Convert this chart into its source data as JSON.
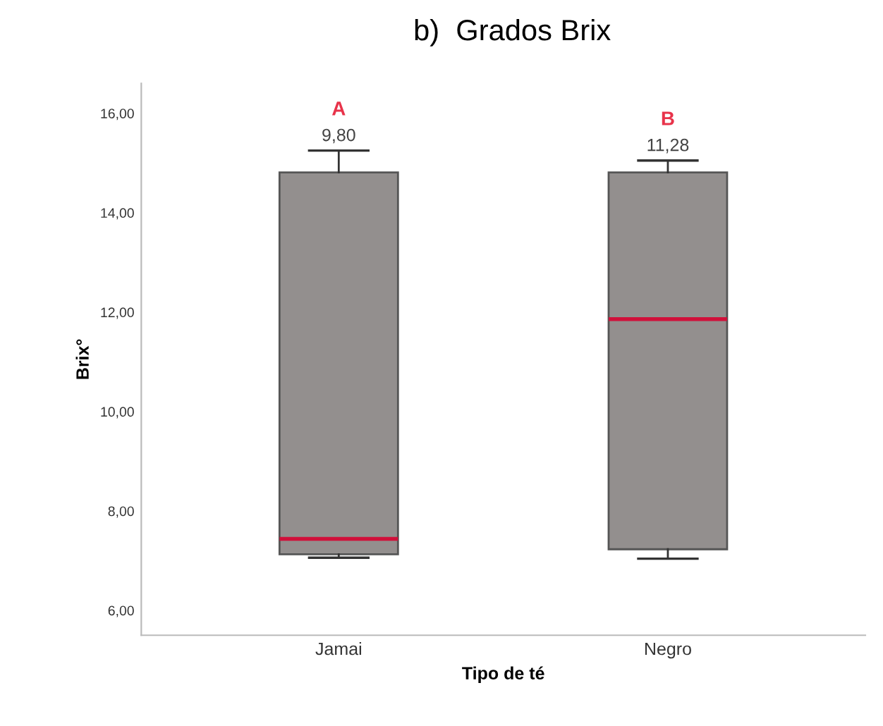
{
  "chart_data": {
    "type": "box",
    "title": "b)  Grados Brix",
    "xlabel": "Tipo de té",
    "ylabel": "Brix°",
    "categories": [
      "Jamai",
      "Negro"
    ],
    "series": [
      {
        "color": "#938f8e",
        "boxes": [
          {
            "low": 7.06,
            "q1": 7.13,
            "median": 7.44,
            "q3": 14.81,
            "high": 15.25
          },
          {
            "low": 7.04,
            "q1": 7.23,
            "median": 11.86,
            "q3": 14.81,
            "high": 15.05
          }
        ]
      }
    ],
    "ylim": [
      5.5,
      16.6
    ],
    "yticks": [
      {
        "value": 6,
        "label": "6,00"
      },
      {
        "value": 8,
        "label": "8,00"
      },
      {
        "value": 10,
        "label": "10,00"
      },
      {
        "value": 12,
        "label": "12,00"
      },
      {
        "value": 14,
        "label": "14,00"
      },
      {
        "value": 16,
        "label": "16,00"
      }
    ],
    "annotations": [
      {
        "text": "9,80",
        "x": "Jamai",
        "y": 15.25
      },
      {
        "text": "11,28",
        "x": "Negro",
        "y": 15.05
      },
      {
        "text": "A",
        "x": "Jamai",
        "y": 15.25
      },
      {
        "text": "B",
        "x": "Negro",
        "y": 15.05
      }
    ],
    "grid": false
  }
}
